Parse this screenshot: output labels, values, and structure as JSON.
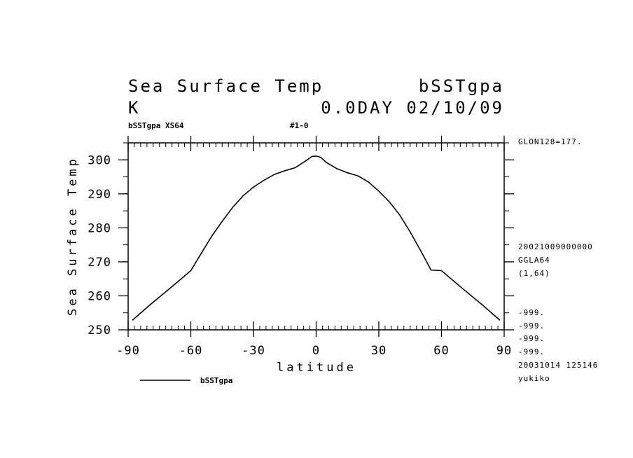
{
  "header": {
    "title_left": "Sea Surface Temp",
    "title_right": "bSSTgpa",
    "units": "K",
    "time_info": "0.0DAY 02/10/09",
    "sub_left": "bSSTgpa XS64",
    "sub_mid": "#1-0"
  },
  "side_info": {
    "lon": "GLON128=177.",
    "date": "20021009000000",
    "grid": "GGLA64",
    "range": "(1,64)",
    "missing": [
      "-999.",
      "-999.",
      "-999.",
      "-999."
    ],
    "created": "20031014 125146",
    "user": "yukiko"
  },
  "chart_data": {
    "type": "line",
    "xlabel": "latitude",
    "ylabel": "Sea Surface Temp",
    "xlim": [
      -90,
      90
    ],
    "ylim": [
      250,
      305
    ],
    "x_ticks": [
      "-90",
      "-60",
      "-30",
      "0",
      "30",
      "60",
      "90"
    ],
    "x_tick_values": [
      -90,
      -60,
      -30,
      0,
      30,
      60,
      90
    ],
    "y_ticks": [
      "250",
      "260",
      "270",
      "280",
      "290",
      "300"
    ],
    "y_tick_values": [
      250,
      260,
      270,
      280,
      290,
      300
    ],
    "legend": "bSSTgpa",
    "series": [
      {
        "name": "bSSTgpa",
        "x": [
          -88,
          -80,
          -70,
          -60,
          -55,
          -50,
          -45,
          -40,
          -35,
          -30,
          -25,
          -20,
          -15,
          -10,
          -5,
          -2,
          0,
          2,
          5,
          10,
          15,
          20,
          25,
          30,
          35,
          40,
          45,
          50,
          55,
          60,
          70,
          80,
          88
        ],
        "y": [
          252.8,
          257.1,
          262.2,
          267.4,
          272.5,
          277.5,
          281.9,
          286.0,
          289.4,
          292.0,
          294.0,
          295.7,
          296.8,
          297.7,
          299.7,
          301.0,
          301.1,
          300.8,
          299.2,
          297.4,
          296.2,
          295.3,
          293.5,
          290.8,
          287.7,
          283.8,
          278.8,
          273.3,
          267.6,
          267.4,
          262.2,
          257.1,
          252.8
        ]
      }
    ]
  }
}
